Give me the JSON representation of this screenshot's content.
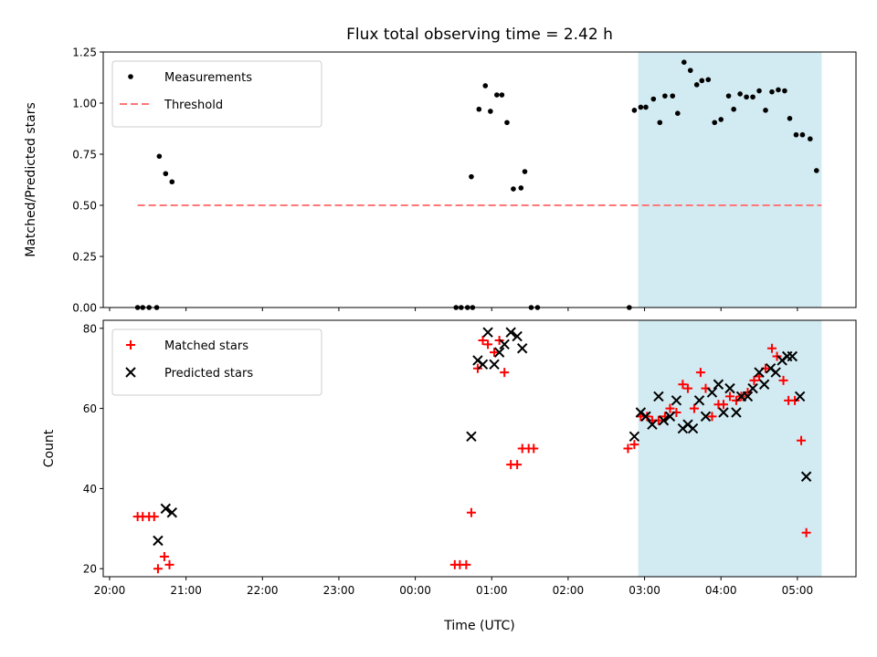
{
  "chart_data": {
    "title": "Flux total observing time = 2.42 h",
    "xlabel": "Time (UTC)",
    "x_ticks": [
      "20:00",
      "21:00",
      "22:00",
      "23:00",
      "00:00",
      "01:00",
      "02:00",
      "03:00",
      "04:00",
      "05:00"
    ],
    "shaded_interval": {
      "from": "02:55",
      "to": "05:19",
      "color": "#add8e6"
    },
    "panels": [
      {
        "type": "scatter",
        "ylabel": "Matched/Predicted stars",
        "ylim": [
          0,
          1.25
        ],
        "y_ticks": [
          "0.00",
          "0.25",
          "0.50",
          "0.75",
          "1.00",
          "1.25"
        ],
        "legend": {
          "placement": "top-left"
        },
        "series": [
          {
            "name": "Measurements",
            "marker": "dot",
            "color": "#000000",
            "points": [
              [
                "20:22",
                0
              ],
              [
                "20:26",
                0
              ],
              [
                "20:31",
                0
              ],
              [
                "20:37",
                0
              ],
              [
                "20:39",
                0.74
              ],
              [
                "20:44",
                0.655
              ],
              [
                "20:49",
                0.615
              ],
              [
                "00:32",
                0
              ],
              [
                "00:36",
                0
              ],
              [
                "00:41",
                0
              ],
              [
                "00:45",
                0
              ],
              [
                "00:44",
                0.64
              ],
              [
                "00:50",
                0.97
              ],
              [
                "00:55",
                1.085
              ],
              [
                "00:59",
                0.96
              ],
              [
                "01:04",
                1.04
              ],
              [
                "01:08",
                1.04
              ],
              [
                "01:12",
                0.905
              ],
              [
                "01:17",
                0.58
              ],
              [
                "01:23",
                0.585
              ],
              [
                "01:26",
                0.665
              ],
              [
                "01:31",
                0
              ],
              [
                "01:36",
                0
              ],
              [
                "02:48",
                0
              ],
              [
                "02:52",
                0.965
              ],
              [
                "02:57",
                0.98
              ],
              [
                "03:01",
                0.98
              ],
              [
                "03:07",
                1.02
              ],
              [
                "03:12",
                0.905
              ],
              [
                "03:16",
                1.035
              ],
              [
                "03:22",
                1.035
              ],
              [
                "03:26",
                0.95
              ],
              [
                "03:31",
                1.2
              ],
              [
                "03:36",
                1.16
              ],
              [
                "03:41",
                1.09
              ],
              [
                "03:45",
                1.11
              ],
              [
                "03:50",
                1.115
              ],
              [
                "03:55",
                0.905
              ],
              [
                "04:00",
                0.92
              ],
              [
                "04:06",
                1.035
              ],
              [
                "04:10",
                0.97
              ],
              [
                "04:15",
                1.045
              ],
              [
                "04:20",
                1.03
              ],
              [
                "04:25",
                1.03
              ],
              [
                "04:30",
                1.06
              ],
              [
                "04:35",
                0.965
              ],
              [
                "04:40",
                1.055
              ],
              [
                "04:45",
                1.065
              ],
              [
                "04:50",
                1.06
              ],
              [
                "04:54",
                0.925
              ],
              [
                "04:59",
                0.845
              ],
              [
                "05:04",
                0.845
              ],
              [
                "05:10",
                0.825
              ],
              [
                "05:15",
                0.67
              ]
            ]
          },
          {
            "name": "Threshold",
            "type": "line",
            "style": "dashed",
            "color": "#ff7777",
            "points": [
              [
                "20:22",
                0.5
              ],
              [
                "05:19",
                0.5
              ]
            ]
          }
        ]
      },
      {
        "type": "scatter",
        "ylabel": "Count",
        "ylim": [
          18,
          82
        ],
        "y_ticks": [
          "20",
          "40",
          "60",
          "80"
        ],
        "legend": {
          "placement": "top-left"
        },
        "series": [
          {
            "name": "Matched stars",
            "marker": "plus",
            "color": "#ff0000",
            "points": [
              [
                "20:22",
                33
              ],
              [
                "20:26",
                33
              ],
              [
                "20:31",
                33
              ],
              [
                "20:35",
                33
              ],
              [
                "20:38",
                20
              ],
              [
                "20:43",
                23
              ],
              [
                "20:47",
                21
              ],
              [
                "00:31",
                21
              ],
              [
                "00:35",
                21
              ],
              [
                "00:40",
                21
              ],
              [
                "00:44",
                34
              ],
              [
                "00:49",
                70
              ],
              [
                "00:53",
                77
              ],
              [
                "00:57",
                76
              ],
              [
                "01:02",
                74
              ],
              [
                "01:06",
                77
              ],
              [
                "01:10",
                69
              ],
              [
                "01:15",
                46
              ],
              [
                "01:20",
                46
              ],
              [
                "01:24",
                50
              ],
              [
                "01:29",
                50
              ],
              [
                "01:33",
                50
              ],
              [
                "02:47",
                50
              ],
              [
                "02:52",
                51
              ],
              [
                "02:57",
                58
              ],
              [
                "03:02",
                58
              ],
              [
                "03:06",
                57
              ],
              [
                "03:11",
                57
              ],
              [
                "03:16",
                58
              ],
              [
                "03:20",
                60
              ],
              [
                "03:25",
                59
              ],
              [
                "03:30",
                66
              ],
              [
                "03:34",
                65
              ],
              [
                "03:39",
                60
              ],
              [
                "03:44",
                69
              ],
              [
                "03:48",
                65
              ],
              [
                "03:53",
                58
              ],
              [
                "03:58",
                61
              ],
              [
                "04:02",
                61
              ],
              [
                "04:07",
                63
              ],
              [
                "04:12",
                62
              ],
              [
                "04:16",
                63
              ],
              [
                "04:21",
                64
              ],
              [
                "04:26",
                67
              ],
              [
                "04:30",
                68
              ],
              [
                "04:35",
                70
              ],
              [
                "04:40",
                75
              ],
              [
                "04:44",
                73
              ],
              [
                "04:49",
                67
              ],
              [
                "04:53",
                62
              ],
              [
                "04:58",
                62
              ],
              [
                "05:03",
                52
              ],
              [
                "05:07",
                29
              ]
            ]
          },
          {
            "name": "Predicted stars",
            "marker": "x",
            "color": "#000000",
            "points": [
              [
                "20:38",
                27
              ],
              [
                "20:44",
                35
              ],
              [
                "20:49",
                34
              ],
              [
                "00:44",
                53
              ],
              [
                "00:49",
                72
              ],
              [
                "00:53",
                71
              ],
              [
                "00:57",
                79
              ],
              [
                "01:02",
                71
              ],
              [
                "01:06",
                74
              ],
              [
                "01:10",
                76
              ],
              [
                "01:15",
                79
              ],
              [
                "01:20",
                78
              ],
              [
                "01:24",
                75
              ],
              [
                "02:52",
                53
              ],
              [
                "02:57",
                59
              ],
              [
                "03:01",
                58
              ],
              [
                "03:06",
                56
              ],
              [
                "03:11",
                63
              ],
              [
                "03:15",
                57
              ],
              [
                "03:20",
                58
              ],
              [
                "03:25",
                62
              ],
              [
                "03:30",
                55
              ],
              [
                "03:34",
                56
              ],
              [
                "03:38",
                55
              ],
              [
                "03:43",
                62
              ],
              [
                "03:48",
                58
              ],
              [
                "03:53",
                64
              ],
              [
                "03:58",
                66
              ],
              [
                "04:02",
                59
              ],
              [
                "04:07",
                65
              ],
              [
                "04:12",
                59
              ],
              [
                "04:16",
                63
              ],
              [
                "04:21",
                63
              ],
              [
                "04:25",
                65
              ],
              [
                "04:30",
                69
              ],
              [
                "04:34",
                66
              ],
              [
                "04:39",
                70
              ],
              [
                "04:43",
                69
              ],
              [
                "04:48",
                72
              ],
              [
                "04:52",
                73
              ],
              [
                "04:56",
                73
              ],
              [
                "05:02",
                63
              ],
              [
                "05:07",
                43
              ]
            ]
          }
        ]
      }
    ]
  }
}
